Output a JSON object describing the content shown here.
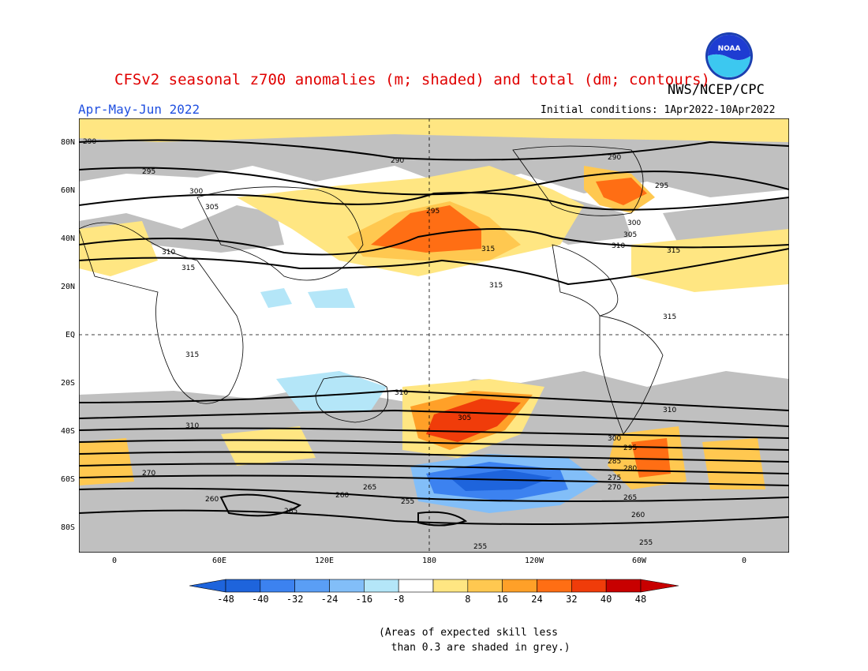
{
  "header": {
    "title": "CFSv2 seasonal z700 anomalies (m; shaded) and total (dm; contours)",
    "agency": "NWS/NCEP/CPC",
    "period": "Apr-May-Jun 2022",
    "initial_conditions": "Initial conditions: 1Apr2022-10Apr2022",
    "logo_text": "NOAA"
  },
  "axes": {
    "lat_labels": [
      "80N",
      "60N",
      "40N",
      "20N",
      "EQ",
      "20S",
      "40S",
      "60S",
      "80S"
    ],
    "lon_labels": [
      "0",
      "60E",
      "120E",
      "180",
      "120W",
      "60W",
      "0"
    ]
  },
  "colorbar": {
    "labels": [
      "-48",
      "-40",
      "-32",
      "-24",
      "-16",
      "-8",
      "8",
      "16",
      "24",
      "32",
      "40",
      "48"
    ],
    "colors": [
      "#1e64dc",
      "#3c82f0",
      "#5a9ef5",
      "#82bef8",
      "#b4e6f8",
      "#ffffff",
      "#ffe682",
      "#ffc850",
      "#ffa028",
      "#ff6e14",
      "#f03c0a",
      "#c80000"
    ]
  },
  "contour_labels": [
    "290",
    "295",
    "300",
    "305",
    "310",
    "315",
    "260",
    "265",
    "270",
    "275",
    "280",
    "285",
    "255"
  ],
  "note": {
    "line1": "(Areas of expected skill less",
    "line2": "than 0.3 are shaded in grey.)"
  }
}
